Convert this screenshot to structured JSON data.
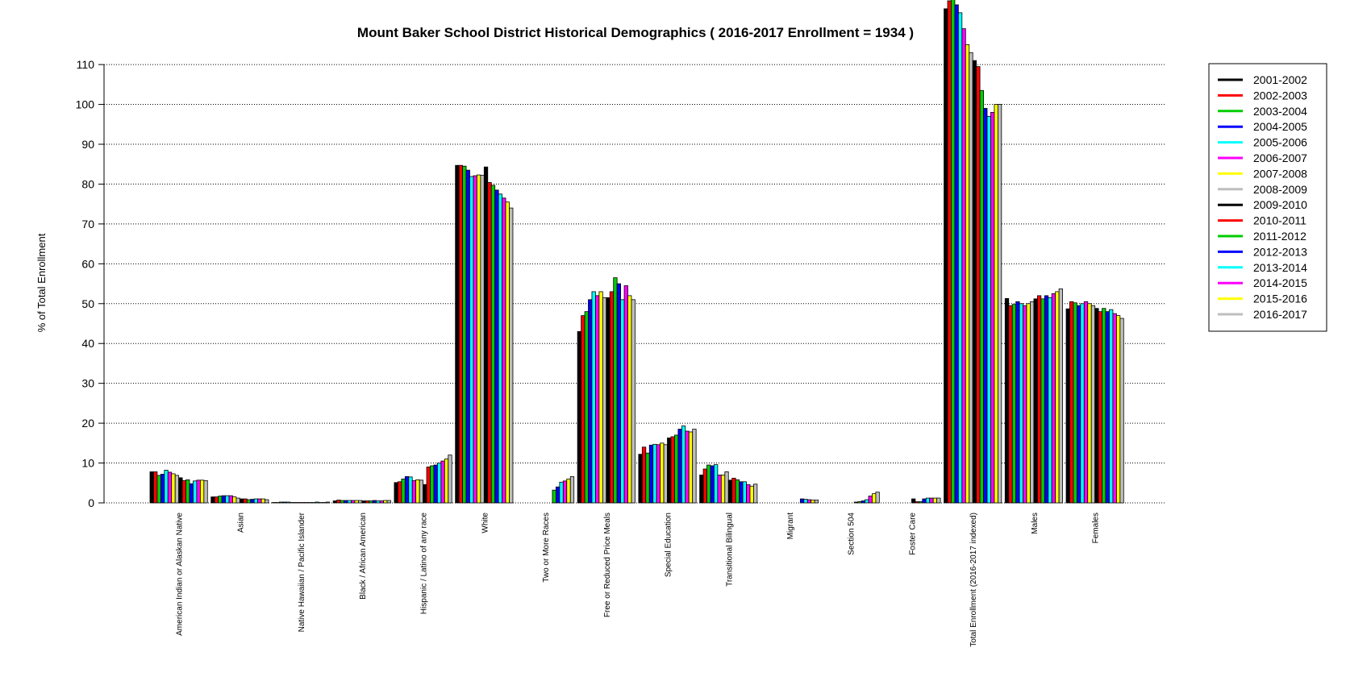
{
  "chart_data": {
    "type": "bar",
    "title": "Mount Baker School District Historical Demographics  ( 2016-2017 Enrollment =  1934 )",
    "y_label": "% of Total Enrollment",
    "categories": [
      "American Indian or Alaskan Native",
      "Asian",
      "Native Hawaiian / Pacific Islander",
      "Black / African American",
      "Hispanic / Latino of any race",
      "White",
      "Two or More Races",
      "Free or Reduced Price Meals",
      "Special Education",
      "Transitional Bilingual",
      "Migrant",
      "Section 504",
      "Foster Care",
      "Total Enrollment (2016-2017 indexed)",
      "Males",
      "Females"
    ],
    "series": [
      {
        "name": "2001-2002",
        "color": "#000000",
        "values": [
          7.8,
          1.5,
          0.1,
          0.5,
          5.1,
          84.7,
          null,
          43.0,
          12.2,
          7.0,
          0,
          0,
          null,
          124,
          51.3,
          48.7
        ]
      },
      {
        "name": "2002-2003",
        "color": "#ff0000",
        "values": [
          7.8,
          1.5,
          0.1,
          0.7,
          5.3,
          84.7,
          null,
          47.0,
          14.0,
          8.5,
          0,
          0,
          null,
          126,
          49.5,
          50.5
        ]
      },
      {
        "name": "2003-2004",
        "color": "#00cd00",
        "values": [
          6.9,
          1.7,
          0.2,
          0.6,
          6.0,
          84.5,
          null,
          48.0,
          12.5,
          9.5,
          0,
          0,
          null,
          127,
          49.8,
          50.2
        ]
      },
      {
        "name": "2004-2005",
        "color": "#0000ff",
        "values": [
          7.2,
          1.8,
          0.2,
          0.6,
          6.6,
          83.5,
          null,
          51.0,
          14.5,
          9.3,
          0,
          0,
          null,
          125,
          50.5,
          49.5
        ]
      },
      {
        "name": "2005-2006",
        "color": "#00ffff",
        "values": [
          8.2,
          1.8,
          0.2,
          0.6,
          6.5,
          81.9,
          null,
          53.0,
          14.7,
          9.6,
          0,
          0,
          null,
          123,
          50.0,
          50.0
        ]
      },
      {
        "name": "2006-2007",
        "color": "#ff00ff",
        "values": [
          7.7,
          1.8,
          0.1,
          0.6,
          5.6,
          82.1,
          null,
          52.0,
          14.6,
          7.0,
          0,
          0,
          null,
          119,
          49.5,
          50.5
        ]
      },
      {
        "name": "2007-2008",
        "color": "#ffff00",
        "values": [
          7.3,
          1.5,
          0.1,
          0.6,
          5.8,
          82.3,
          null,
          53.0,
          15.0,
          7.0,
          0,
          0,
          null,
          115,
          50.0,
          50.0
        ]
      },
      {
        "name": "2008-2009",
        "color": "#bebebe",
        "values": [
          6.9,
          1.2,
          0.1,
          0.6,
          5.7,
          82.2,
          null,
          51.5,
          14.6,
          7.8,
          0,
          0,
          null,
          113,
          50.5,
          49.5
        ]
      },
      {
        "name": "2009-2010",
        "color": "#000000",
        "values": [
          6.3,
          1.0,
          0.1,
          0.5,
          4.6,
          84.3,
          null,
          51.5,
          16.3,
          5.7,
          0,
          0,
          1.0,
          111,
          51.2,
          48.8
        ]
      },
      {
        "name": "2010-2011",
        "color": "#ff0000",
        "values": [
          5.6,
          1.0,
          0.1,
          0.5,
          9.0,
          80.4,
          null,
          53.0,
          16.6,
          6.2,
          0,
          0.2,
          0.3,
          109.5,
          52.0,
          48.0
        ]
      },
      {
        "name": "2011-2012",
        "color": "#00cd00",
        "values": [
          5.8,
          0.8,
          0.1,
          0.5,
          9.3,
          79.7,
          3.2,
          56.5,
          17.0,
          5.8,
          0,
          0.3,
          0.3,
          103.5,
          51.2,
          48.8
        ]
      },
      {
        "name": "2012-2013",
        "color": "#0000ff",
        "values": [
          4.8,
          0.9,
          0.1,
          0.6,
          9.5,
          78.5,
          4.0,
          55.0,
          18.5,
          5.3,
          1.0,
          0.5,
          1.0,
          99,
          52.0,
          48.0
        ]
      },
      {
        "name": "2013-2014",
        "color": "#00ffff",
        "values": [
          5.5,
          1.0,
          0.2,
          0.5,
          10.0,
          77.5,
          5.2,
          51.0,
          19.3,
          5.3,
          0.9,
          0.8,
          1.2,
          97,
          51.5,
          48.5
        ]
      },
      {
        "name": "2014-2015",
        "color": "#ff00ff",
        "values": [
          5.7,
          1.0,
          0.1,
          0.5,
          10.5,
          76.5,
          5.5,
          54.5,
          18.0,
          4.6,
          0.8,
          1.7,
          1.2,
          98,
          52.5,
          47.5
        ]
      },
      {
        "name": "2015-2016",
        "color": "#ffff00",
        "values": [
          5.7,
          1.0,
          0.1,
          0.6,
          11.0,
          75.5,
          6.0,
          52.0,
          17.8,
          4.2,
          0.7,
          2.3,
          1.2,
          100,
          53.0,
          47.0
        ]
      },
      {
        "name": "2016-2017",
        "color": "#bebebe",
        "values": [
          5.6,
          0.8,
          0.2,
          0.6,
          12.0,
          74.0,
          6.6,
          51.0,
          18.5,
          4.7,
          0.7,
          2.7,
          1.2,
          100,
          53.7,
          46.3
        ]
      }
    ],
    "ylim": [
      0,
      126.2
    ],
    "yticks": [
      0,
      10,
      20,
      30,
      40,
      50,
      60,
      70,
      80,
      90,
      100,
      110
    ],
    "grid": true,
    "legend": "right"
  }
}
